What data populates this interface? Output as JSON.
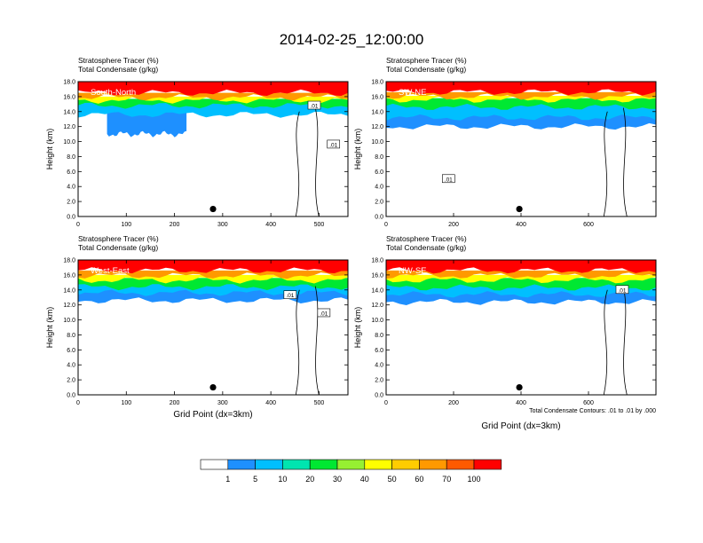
{
  "title": "2014-02-25_12:00:00",
  "chart_data": [
    {
      "type": "heatmap",
      "panel_label": "South-North",
      "header_lines": [
        "Stratosphere Tracer   (%)",
        "Total Condensate   (g/kg)"
      ],
      "ylabel": "Height (km)",
      "xlabel": "",
      "xlim": [
        0,
        560
      ],
      "ylim": [
        0,
        18
      ],
      "xticks": [
        0,
        100,
        200,
        300,
        400,
        500
      ],
      "yticks": [
        "0.0",
        "2.0",
        "4.0",
        "6.0",
        "8.0",
        "10.0",
        "12.0",
        "14.0",
        "16.0",
        "18.0"
      ],
      "marker_x": 280,
      "tracer_bands": [
        {
          "level": 1,
          "x": [
            60,
            225
          ],
          "top": 14.0,
          "bottom": 11.0
        },
        {
          "level": 5,
          "x": [
            0,
            560
          ],
          "top": 15.3,
          "bottom": 13.6
        },
        {
          "level": 20,
          "x": [
            0,
            560
          ],
          "top": 15.7,
          "bottom": 14.8
        },
        {
          "level": 40,
          "x": [
            0,
            560
          ],
          "top": 16.0,
          "bottom": 15.5
        },
        {
          "level": 60,
          "x": [
            0,
            560
          ],
          "top": 16.5,
          "bottom": 15.9
        },
        {
          "level": 100,
          "x": [
            0,
            560
          ],
          "top": 18.0,
          "bottom": 16.5
        }
      ],
      "contour_labels": [
        {
          "text": ".01",
          "x": 490,
          "y": 14.8
        },
        {
          "text": ".01",
          "x": 530,
          "y": 9.6
        }
      ]
    },
    {
      "type": "heatmap",
      "panel_label": "SW-NE",
      "header_lines": [
        "Stratosphere Tracer   (%)",
        "Total Condensate   (g/kg)"
      ],
      "ylabel": "Height (km)",
      "xlabel": "",
      "xlim": [
        0,
        800
      ],
      "ylim": [
        0,
        18
      ],
      "xticks": [
        0,
        200,
        400,
        600
      ],
      "yticks": [
        "0.0",
        "2.0",
        "4.0",
        "6.0",
        "8.0",
        "10.0",
        "12.0",
        "14.0",
        "16.0",
        "18.0"
      ],
      "marker_x": 395,
      "tracer_bands": [
        {
          "level": 1,
          "x": [
            0,
            800
          ],
          "top": 14.6,
          "bottom": 12.0
        },
        {
          "level": 5,
          "x": [
            0,
            800
          ],
          "top": 15.3,
          "bottom": 13.2
        },
        {
          "level": 20,
          "x": [
            0,
            800
          ],
          "top": 15.8,
          "bottom": 14.6
        },
        {
          "level": 40,
          "x": [
            0,
            800
          ],
          "top": 16.1,
          "bottom": 15.6
        },
        {
          "level": 60,
          "x": [
            0,
            800
          ],
          "top": 16.6,
          "bottom": 16.0
        },
        {
          "level": 100,
          "x": [
            0,
            800
          ],
          "top": 18.0,
          "bottom": 16.6
        }
      ],
      "contour_labels": [
        {
          "text": ".01",
          "x": 185,
          "y": 5.0
        }
      ]
    },
    {
      "type": "heatmap",
      "panel_label": "West-East",
      "header_lines": [
        "Stratosphere Tracer   (%)",
        "Total Condensate   (g/kg)"
      ],
      "ylabel": "Height (km)",
      "xlabel": "Grid Point (dx=3km)",
      "xlim": [
        0,
        560
      ],
      "ylim": [
        0,
        18
      ],
      "xticks": [
        0,
        100,
        200,
        300,
        400,
        500
      ],
      "yticks": [
        "0.0",
        "2.0",
        "4.0",
        "6.0",
        "8.0",
        "10.0",
        "12.0",
        "14.0",
        "16.0",
        "18.0"
      ],
      "marker_x": 280,
      "tracer_bands": [
        {
          "level": 1,
          "x": [
            0,
            560
          ],
          "top": 14.4,
          "bottom": 12.6
        },
        {
          "level": 5,
          "x": [
            0,
            560
          ],
          "top": 15.0,
          "bottom": 13.6
        },
        {
          "level": 20,
          "x": [
            0,
            560
          ],
          "top": 15.6,
          "bottom": 14.4
        },
        {
          "level": 40,
          "x": [
            0,
            560
          ],
          "top": 16.0,
          "bottom": 15.3
        },
        {
          "level": 60,
          "x": [
            0,
            560
          ],
          "top": 16.6,
          "bottom": 15.9
        },
        {
          "level": 100,
          "x": [
            0,
            560
          ],
          "top": 18.0,
          "bottom": 16.6
        }
      ],
      "contour_labels": [
        {
          "text": ".01",
          "x": 440,
          "y": 13.3
        },
        {
          "text": ".01",
          "x": 510,
          "y": 10.9
        }
      ]
    },
    {
      "type": "heatmap",
      "panel_label": "NW-SE",
      "header_lines": [
        "Stratosphere Tracer   (%)",
        "Total Condensate   (g/kg)"
      ],
      "ylabel": "Height (km)",
      "xlabel": "Grid Point (dx=3km)",
      "xlim": [
        0,
        800
      ],
      "ylim": [
        0,
        18
      ],
      "xticks": [
        0,
        200,
        400,
        600
      ],
      "yticks": [
        "0.0",
        "2.0",
        "4.0",
        "6.0",
        "8.0",
        "10.0",
        "12.0",
        "14.0",
        "16.0",
        "18.0"
      ],
      "marker_x": 395,
      "tracer_bands": [
        {
          "level": 1,
          "x": [
            0,
            800
          ],
          "top": 14.4,
          "bottom": 12.4
        },
        {
          "level": 5,
          "x": [
            0,
            800
          ],
          "top": 15.0,
          "bottom": 13.4
        },
        {
          "level": 20,
          "x": [
            0,
            800
          ],
          "top": 15.6,
          "bottom": 14.3
        },
        {
          "level": 40,
          "x": [
            0,
            800
          ],
          "top": 16.0,
          "bottom": 15.3
        },
        {
          "level": 60,
          "x": [
            0,
            800
          ],
          "top": 16.6,
          "bottom": 15.9
        },
        {
          "level": 100,
          "x": [
            0,
            800
          ],
          "top": 18.0,
          "bottom": 16.6
        }
      ],
      "contour_labels": [
        {
          "text": ".01",
          "x": 700,
          "y": 14.0
        }
      ],
      "footnote": "Total Condensate Contours: .01 to .01 by .000"
    }
  ],
  "colorbar": {
    "colors": [
      "#ffffff",
      "#1e90ff",
      "#00bfff",
      "#00e5b0",
      "#00e832",
      "#96f032",
      "#ffff00",
      "#ffcc00",
      "#ff9900",
      "#ff5a00",
      "#ff0000"
    ],
    "labels": [
      "1",
      "5",
      "10",
      "20",
      "30",
      "40",
      "50",
      "60",
      "70",
      "100"
    ]
  }
}
